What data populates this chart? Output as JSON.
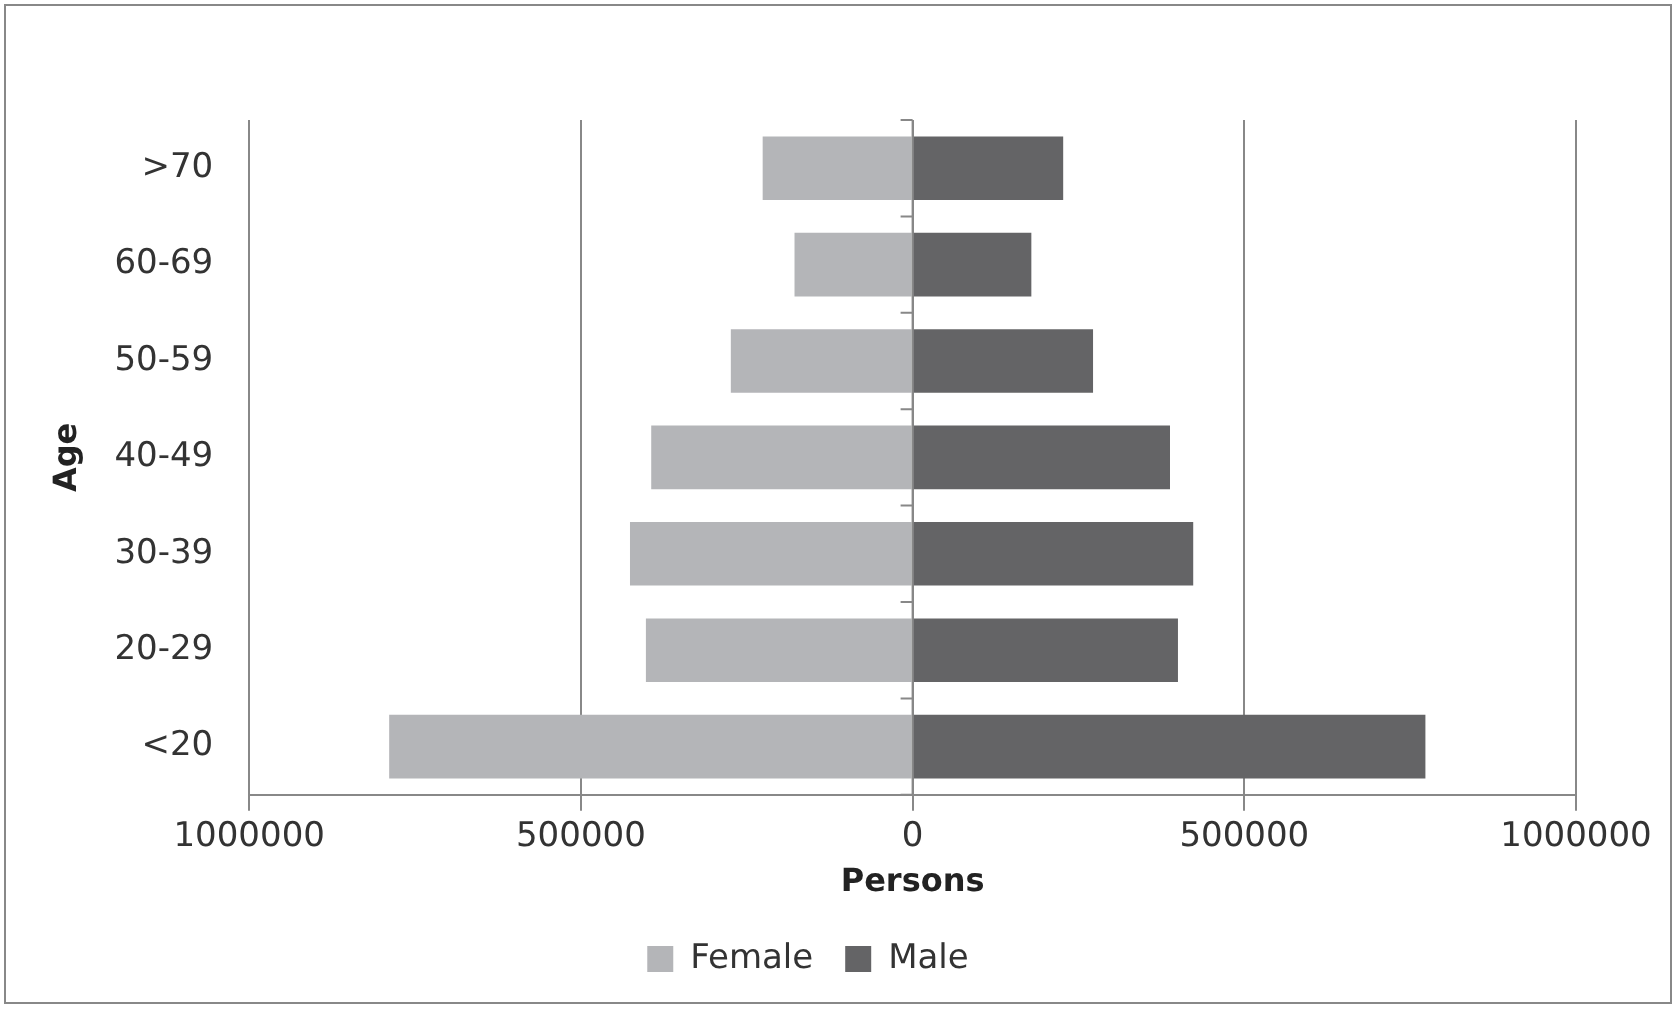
{
  "chart_data": {
    "type": "bar",
    "orientation": "horizontal",
    "stacked": true,
    "xlabel": "Persons",
    "ylabel": "Age",
    "categories": [
      ">70",
      "60-69",
      "50-59",
      "40-49",
      "30-39",
      "20-29",
      "<20"
    ],
    "series": [
      {
        "name": "Female",
        "color": "#b4b5b8",
        "values": [
          -226000,
          -178000,
          -274000,
          -394000,
          -426000,
          -402000,
          -789000
        ]
      },
      {
        "name": "Male",
        "color": "#646466",
        "values": [
          227000,
          179000,
          272000,
          388000,
          423000,
          400000,
          773000
        ]
      }
    ],
    "xlim": [
      -1000000,
      1000000
    ],
    "xticks": [
      {
        "value": -1000000,
        "label": "1000000"
      },
      {
        "value": -500000,
        "label": "500000"
      },
      0,
      500000,
      1000000
    ],
    "grid": "x",
    "legend": "bottom"
  }
}
